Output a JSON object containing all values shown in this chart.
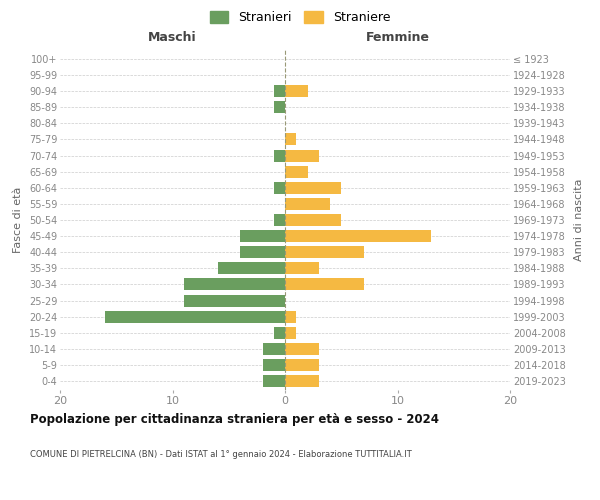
{
  "age_groups": [
    "0-4",
    "5-9",
    "10-14",
    "15-19",
    "20-24",
    "25-29",
    "30-34",
    "35-39",
    "40-44",
    "45-49",
    "50-54",
    "55-59",
    "60-64",
    "65-69",
    "70-74",
    "75-79",
    "80-84",
    "85-89",
    "90-94",
    "95-99",
    "100+"
  ],
  "birth_years": [
    "2019-2023",
    "2014-2018",
    "2009-2013",
    "2004-2008",
    "1999-2003",
    "1994-1998",
    "1989-1993",
    "1984-1988",
    "1979-1983",
    "1974-1978",
    "1969-1973",
    "1964-1968",
    "1959-1963",
    "1954-1958",
    "1949-1953",
    "1944-1948",
    "1939-1943",
    "1934-1938",
    "1929-1933",
    "1924-1928",
    "≤ 1923"
  ],
  "maschi": [
    2,
    2,
    2,
    1,
    16,
    9,
    9,
    6,
    4,
    4,
    1,
    0,
    1,
    0,
    1,
    0,
    0,
    1,
    1,
    0,
    0
  ],
  "femmine": [
    3,
    3,
    3,
    1,
    1,
    0,
    7,
    3,
    7,
    13,
    5,
    4,
    5,
    2,
    3,
    1,
    0,
    0,
    2,
    0,
    0
  ],
  "maschi_color": "#6a9e5f",
  "femmine_color": "#f5b942",
  "title": "Popolazione per cittadinanza straniera per età e sesso - 2024",
  "subtitle": "COMUNE DI PIETRELCINA (BN) - Dati ISTAT al 1° gennaio 2024 - Elaborazione TUTTITALIA.IT",
  "ylabel_left": "Fasce di età",
  "ylabel_right": "Anni di nascita",
  "xlabel_left": "Maschi",
  "xlabel_right": "Femmine",
  "legend_maschi": "Stranieri",
  "legend_femmine": "Straniere",
  "xlim": 20,
  "background_color": "#ffffff",
  "grid_color": "#cccccc"
}
